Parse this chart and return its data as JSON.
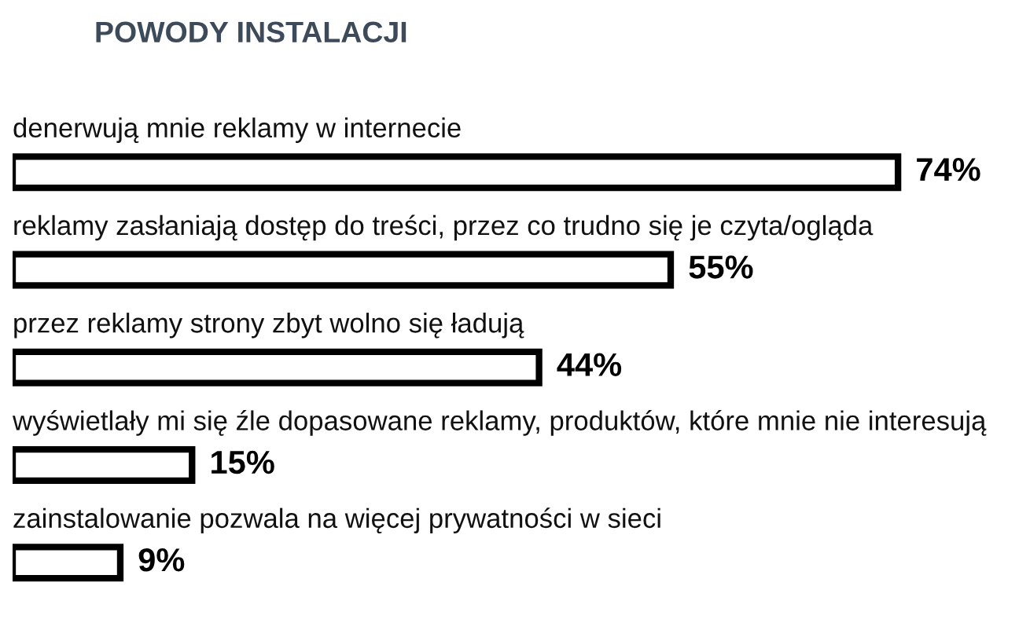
{
  "chart_data": {
    "type": "bar",
    "orientation": "horizontal",
    "title": "POWODY INSTALACJI",
    "categories": [
      "denerwują mnie reklamy w internecie",
      "reklamy zasłaniają dostęp do treści, przez co trudno się je czyta/ogląda",
      "przez reklamy strony zbyt wolno się ładują",
      "wyświetlały mi się źle dopasowane reklamy, produktów, które mnie nie interesują",
      "zainstalowanie pozwala na więcej prywatności w sieci"
    ],
    "values": [
      74,
      55,
      44,
      15,
      9
    ],
    "value_labels": [
      "74%",
      "55%",
      "44%",
      "15%",
      "9%"
    ],
    "color": "#ffffff"
  }
}
